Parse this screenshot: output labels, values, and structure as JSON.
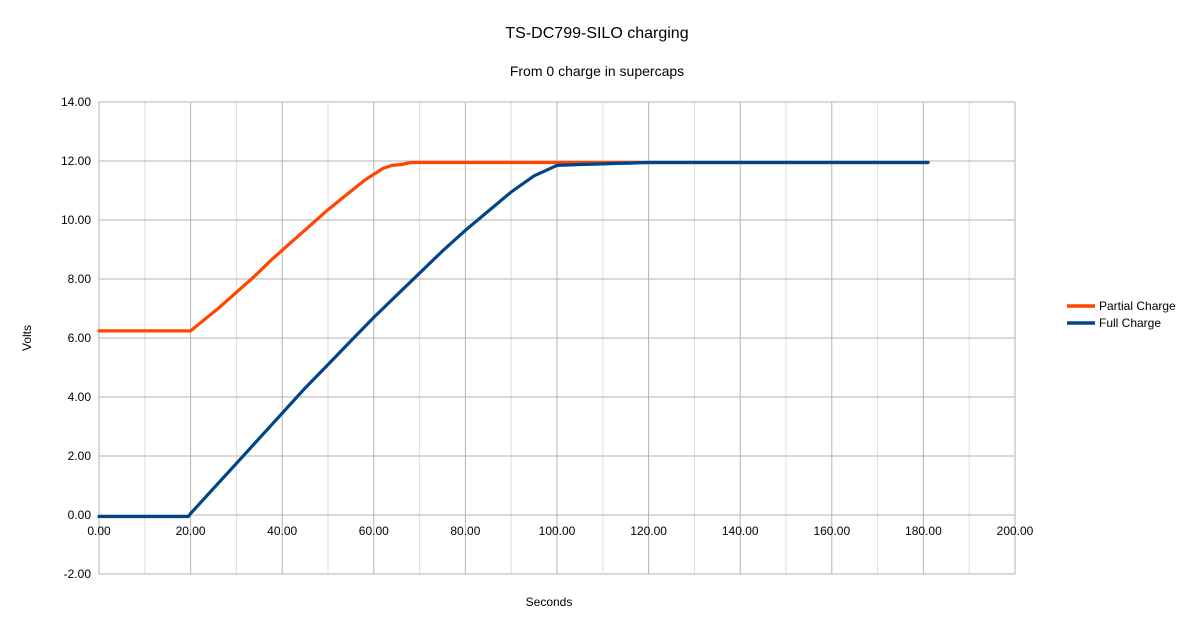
{
  "chart_data": {
    "type": "line",
    "title": "TS-DC799-SILO charging",
    "subtitle": "From 0 charge in supercaps",
    "xlabel": "Seconds",
    "ylabel": "Volts",
    "xlim": [
      0,
      200
    ],
    "ylim": [
      -2,
      14
    ],
    "x_ticks": [
      0,
      20,
      40,
      60,
      80,
      100,
      120,
      140,
      160,
      180,
      200
    ],
    "y_ticks": [
      -2,
      0,
      2,
      4,
      6,
      8,
      10,
      12,
      14
    ],
    "x_tick_labels": [
      "0.00",
      "20.00",
      "40.00",
      "60.00",
      "80.00",
      "100.00",
      "120.00",
      "140.00",
      "160.00",
      "180.00",
      "200.00"
    ],
    "y_tick_labels": [
      "-2.00",
      "0.00",
      "2.00",
      "4.00",
      "6.00",
      "8.00",
      "10.00",
      "12.00",
      "14.00"
    ],
    "grid": true,
    "legend_position": "right",
    "series": [
      {
        "name": "Partial Charge",
        "color": "#ff4500",
        "x": [
          0,
          6,
          10,
          20,
          22,
          26,
          30,
          34,
          38,
          42,
          46,
          50,
          54,
          58,
          62,
          64,
          66,
          68,
          70,
          80,
          90,
          100,
          110,
          120,
          130,
          140,
          150,
          160,
          170,
          180,
          181
        ],
        "y": [
          6.24,
          6.24,
          6.24,
          6.24,
          6.5,
          7.0,
          7.55,
          8.1,
          8.7,
          9.25,
          9.8,
          10.35,
          10.85,
          11.35,
          11.75,
          11.85,
          11.88,
          11.95,
          11.95,
          11.95,
          11.95,
          11.95,
          11.95,
          11.95,
          11.95,
          11.95,
          11.95,
          11.95,
          11.95,
          11.95,
          11.95
        ]
      },
      {
        "name": "Full Charge",
        "color": "#004586",
        "x": [
          0,
          10,
          19.5,
          20,
          25,
          30,
          35,
          40,
          45,
          50,
          55,
          60,
          65,
          70,
          75,
          80,
          85,
          90,
          95,
          100,
          105,
          110,
          113,
          116,
          120,
          130,
          140,
          150,
          160,
          170,
          180,
          181
        ],
        "y": [
          -0.05,
          -0.05,
          -0.05,
          0.05,
          0.9,
          1.75,
          2.6,
          3.45,
          4.3,
          5.1,
          5.9,
          6.7,
          7.45,
          8.2,
          8.95,
          9.65,
          10.3,
          10.95,
          11.5,
          11.85,
          11.88,
          11.9,
          11.92,
          11.93,
          11.95,
          11.95,
          11.95,
          11.95,
          11.95,
          11.95,
          11.95,
          11.95
        ]
      }
    ]
  }
}
